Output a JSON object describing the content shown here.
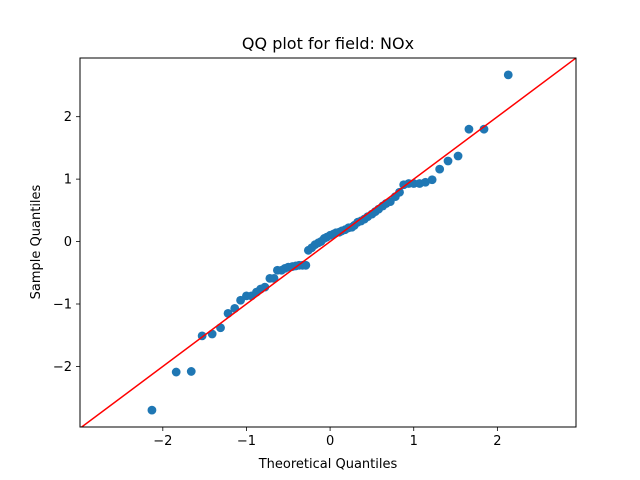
{
  "chart_data": {
    "type": "scatter",
    "title": "QQ plot for field: NOx",
    "xlabel": "Theoretical Quantiles",
    "ylabel": "Sample Quantiles",
    "xlim": [
      -2.99,
      2.94
    ],
    "ylim": [
      -2.97,
      2.94
    ],
    "x_ticks": [
      -2,
      -1,
      0,
      1,
      2
    ],
    "x_tick_labels": [
      "−2",
      "−1",
      "0",
      "1",
      "2"
    ],
    "y_ticks": [
      -2,
      -1,
      0,
      1,
      2
    ],
    "y_tick_labels": [
      "−2",
      "−1",
      "0",
      "1",
      "2"
    ],
    "grid": false,
    "reference_line": {
      "slope": 1,
      "intercept": 0,
      "color": "#ff0000"
    },
    "marker_color": "#1f77b4",
    "points": [
      [
        -2.13,
        -2.7
      ],
      [
        -1.84,
        -2.09
      ],
      [
        -1.66,
        -2.08
      ],
      [
        -1.53,
        -1.51
      ],
      [
        -1.41,
        -1.48
      ],
      [
        -1.31,
        -1.38
      ],
      [
        -1.22,
        -1.15
      ],
      [
        -1.14,
        -1.07
      ],
      [
        -1.07,
        -0.94
      ],
      [
        -1.0,
        -0.87
      ],
      [
        -0.94,
        -0.87
      ],
      [
        -0.88,
        -0.81
      ],
      [
        -0.83,
        -0.76
      ],
      [
        -0.78,
        -0.73
      ],
      [
        -0.72,
        -0.59
      ],
      [
        -0.67,
        -0.59
      ],
      [
        -0.63,
        -0.46
      ],
      [
        -0.58,
        -0.46
      ],
      [
        -0.54,
        -0.43
      ],
      [
        -0.5,
        -0.41
      ],
      [
        -0.45,
        -0.4
      ],
      [
        -0.41,
        -0.39
      ],
      [
        -0.37,
        -0.38
      ],
      [
        -0.33,
        -0.38
      ],
      [
        -0.29,
        -0.38
      ],
      [
        -0.26,
        -0.14
      ],
      [
        -0.22,
        -0.1
      ],
      [
        -0.18,
        -0.05
      ],
      [
        -0.14,
        -0.02
      ],
      [
        -0.11,
        0.0
      ],
      [
        -0.07,
        0.05
      ],
      [
        -0.04,
        0.07
      ],
      [
        0.0,
        0.1
      ],
      [
        0.04,
        0.12
      ],
      [
        0.07,
        0.14
      ],
      [
        0.11,
        0.15
      ],
      [
        0.14,
        0.17
      ],
      [
        0.18,
        0.19
      ],
      [
        0.22,
        0.22
      ],
      [
        0.26,
        0.23
      ],
      [
        0.29,
        0.26
      ],
      [
        0.33,
        0.31
      ],
      [
        0.37,
        0.33
      ],
      [
        0.41,
        0.36
      ],
      [
        0.45,
        0.4
      ],
      [
        0.5,
        0.44
      ],
      [
        0.54,
        0.48
      ],
      [
        0.58,
        0.52
      ],
      [
        0.63,
        0.57
      ],
      [
        0.67,
        0.61
      ],
      [
        0.72,
        0.64
      ],
      [
        0.78,
        0.72
      ],
      [
        0.83,
        0.79
      ],
      [
        0.88,
        0.91
      ],
      [
        0.94,
        0.93
      ],
      [
        1.0,
        0.93
      ],
      [
        1.07,
        0.93
      ],
      [
        1.14,
        0.95
      ],
      [
        1.22,
        0.99
      ],
      [
        1.31,
        1.16
      ],
      [
        1.41,
        1.29
      ],
      [
        1.53,
        1.37
      ],
      [
        1.66,
        1.8
      ],
      [
        1.84,
        1.8
      ],
      [
        2.13,
        2.67
      ]
    ]
  }
}
